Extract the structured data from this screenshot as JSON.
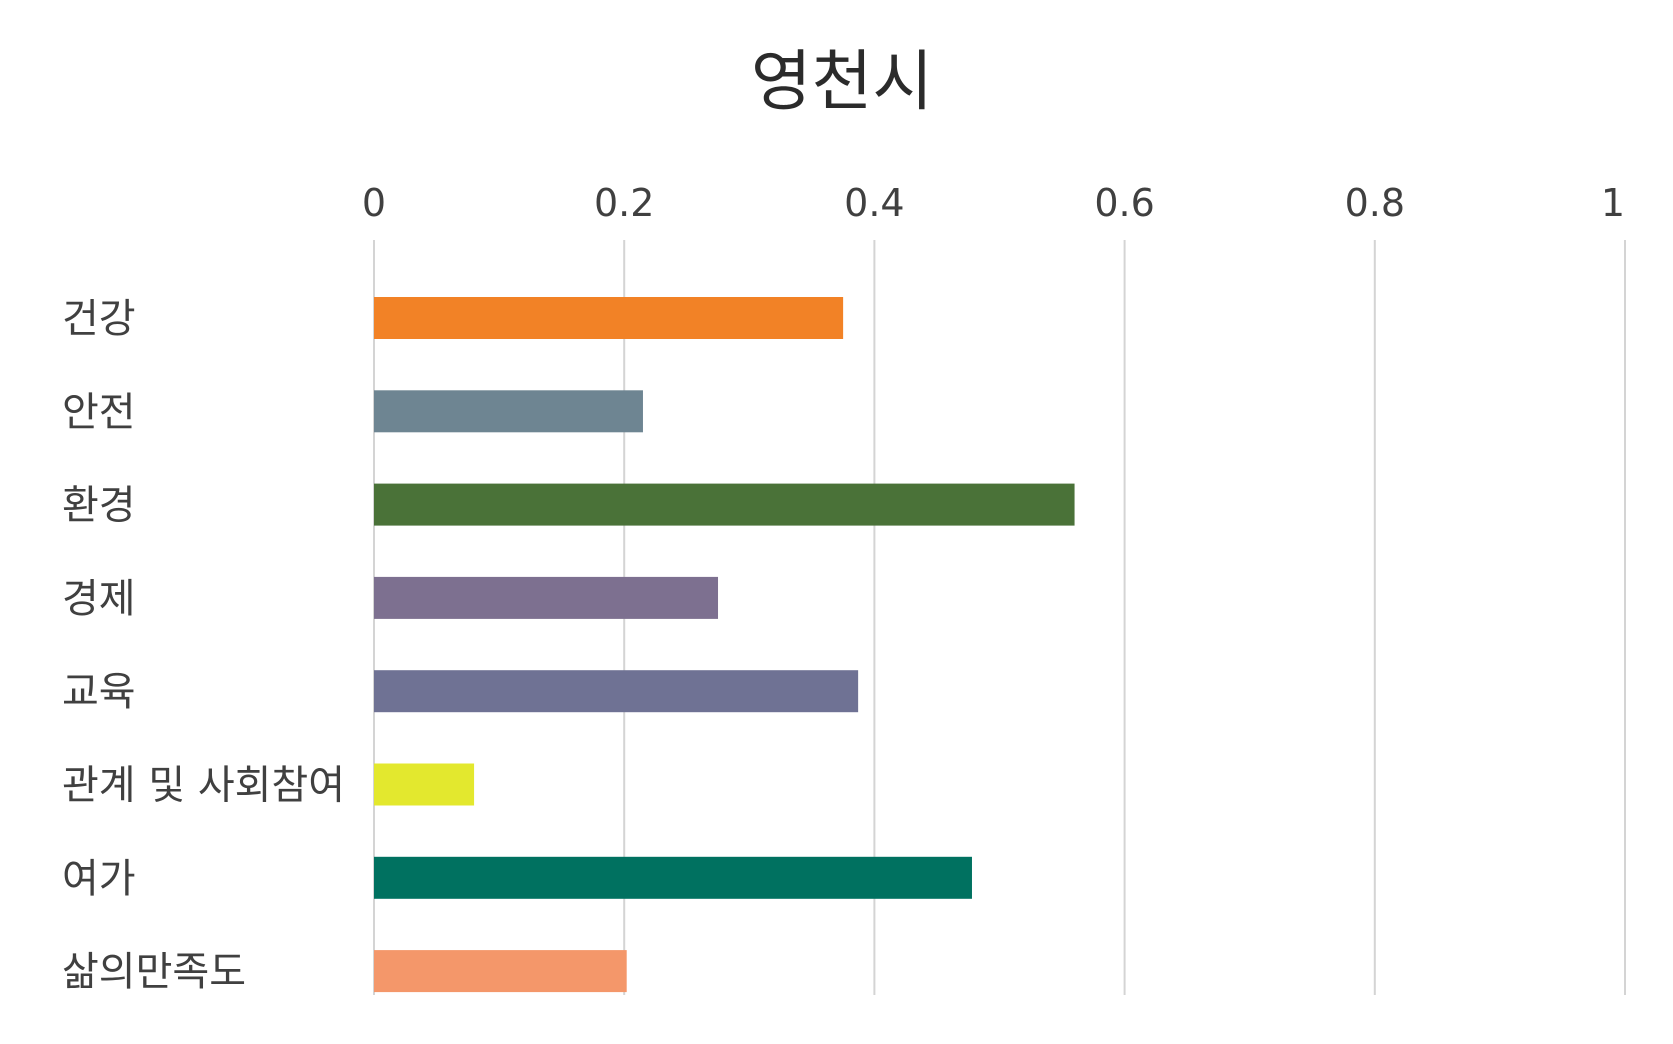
{
  "chart_data": {
    "type": "bar",
    "orientation": "horizontal",
    "title": "영천시",
    "xlabel": "",
    "ylabel": "",
    "xlim": [
      0,
      1
    ],
    "ticks": [
      "0",
      "0.2",
      "0.4",
      "0.6",
      "0.8",
      "1"
    ],
    "tick_values": [
      0,
      0.2,
      0.4,
      0.6,
      0.8,
      1
    ],
    "x_axis_position": "top",
    "grid": true,
    "legend": "none",
    "categories": [
      "건강",
      "안전",
      "환경",
      "경제",
      "교육",
      "관계 및 사회참여",
      "여가",
      "삶의만족도"
    ],
    "values": [
      0.375,
      0.215,
      0.56,
      0.275,
      0.387,
      0.08,
      0.478,
      0.202
    ],
    "colors": [
      "#F28226",
      "#6E8592",
      "#4A7238",
      "#7D7090",
      "#6F7294",
      "#E3E82E",
      "#007160",
      "#F4976A"
    ]
  }
}
